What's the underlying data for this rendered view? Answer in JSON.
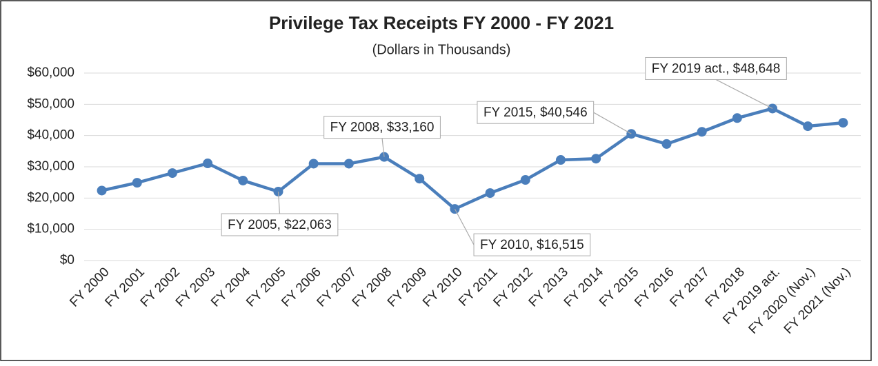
{
  "chart_data": {
    "type": "line",
    "title": "Privilege Tax Receipts FY 2000 - FY 2021",
    "subtitle": "(Dollars in Thousands)",
    "categories": [
      "FY 2000",
      "FY 2001",
      "FY 2002",
      "FY 2003",
      "FY 2004",
      "FY 2005",
      "FY 2006",
      "FY 2007",
      "FY 2008",
      "FY 2009",
      "FY 2010",
      "FY 2011",
      "FY 2012",
      "FY 2013",
      "FY 2014",
      "FY 2015",
      "FY 2016",
      "FY 2017",
      "FY 2018",
      "FY 2019 act.",
      "FY 2020 (Nov.)",
      "FY 2021 (Nov.)"
    ],
    "values": [
      22400,
      24900,
      28000,
      31100,
      25600,
      22063,
      31000,
      31000,
      33160,
      26200,
      16515,
      21600,
      25800,
      32200,
      32600,
      40546,
      37300,
      41200,
      45600,
      48648,
      43000,
      44100
    ],
    "value_labels": [
      null,
      null,
      null,
      null,
      null,
      "FY 2005, $22,063",
      null,
      null,
      "FY 2008, $33,160",
      null,
      "FY 2010, $16,515",
      null,
      null,
      null,
      null,
      "FY 2015, $40,546",
      null,
      null,
      null,
      "FY 2019 act., $48,648",
      null,
      null
    ],
    "color": "#4a7ebb",
    "ylim": [
      0,
      60000
    ],
    "yticks": [
      {
        "value": 0,
        "label": "$0"
      },
      {
        "value": 10000,
        "label": "$10,000"
      },
      {
        "value": 20000,
        "label": "$20,000"
      },
      {
        "value": 30000,
        "label": "$30,000"
      },
      {
        "value": 40000,
        "label": "$40,000"
      },
      {
        "value": 50000,
        "label": "$50,000"
      },
      {
        "value": 60000,
        "label": "$60,000"
      }
    ],
    "grid": true
  }
}
